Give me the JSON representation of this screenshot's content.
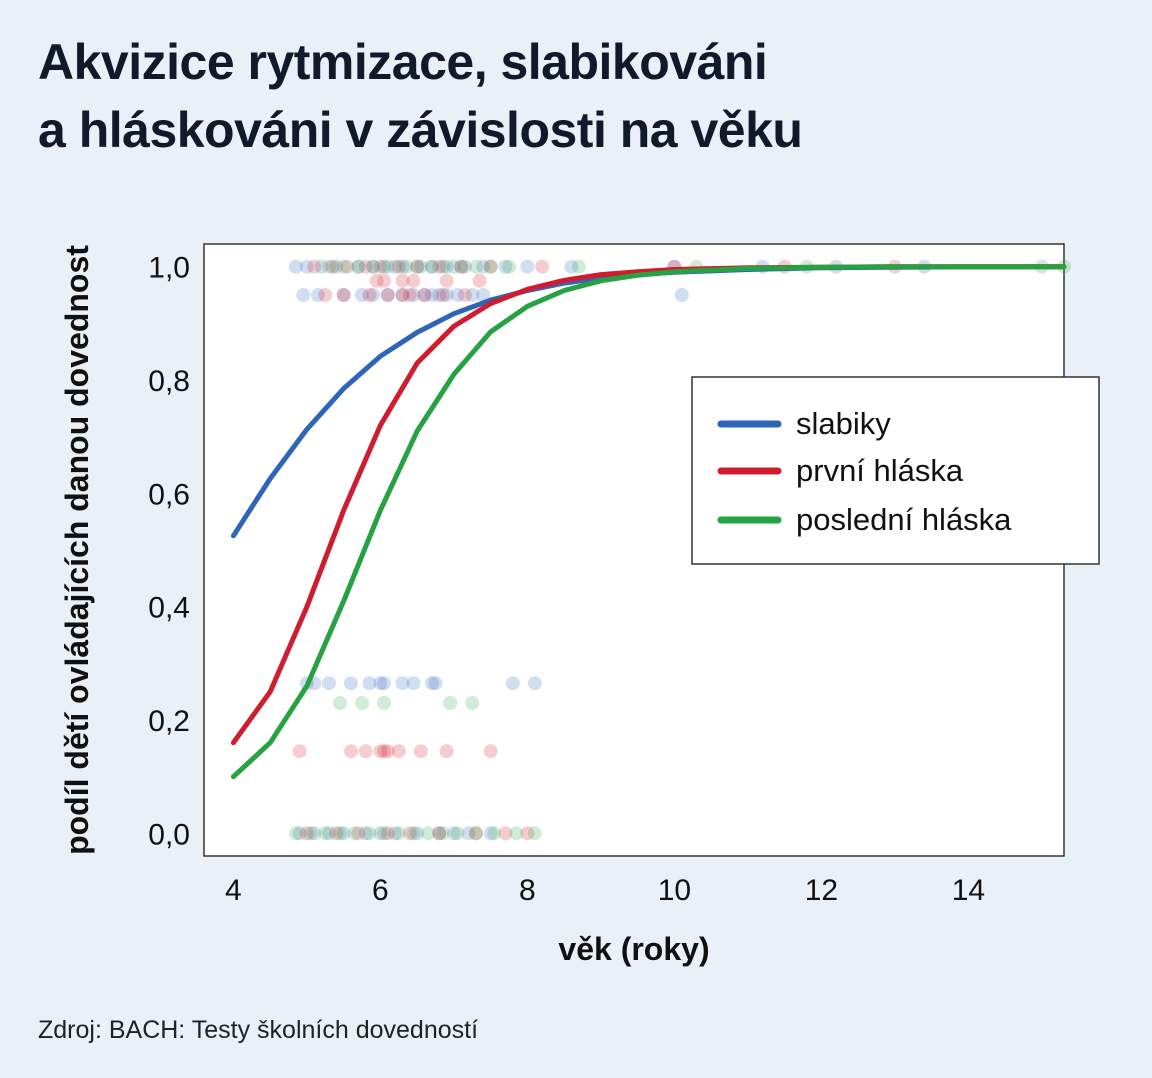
{
  "header": {
    "title_line1": "Akvizice rytmizace, slabikováni",
    "title_line2": "a hláskováni v závislosti na věku"
  },
  "footer": {
    "source": "Zdroj: BACH: Testy školních dovedností"
  },
  "chart_data": {
    "type": "line",
    "title": "Akvizice rytmizace, slabikováni a hláskováni v závislosti na věku",
    "xlabel": "věk (roky)",
    "ylabel": "podíl dětí ovládajících danou dovednost",
    "xlim": [
      3.6,
      15.3
    ],
    "ylim": [
      -0.04,
      1.04
    ],
    "x_ticks": [
      4,
      6,
      8,
      10,
      12,
      14
    ],
    "x_tick_labels": [
      "4",
      "6",
      "8",
      "10",
      "12",
      "14"
    ],
    "y_ticks": [
      0.0,
      0.2,
      0.4,
      0.6,
      0.8,
      1.0
    ],
    "y_tick_labels": [
      "0,0",
      "0,2",
      "0,4",
      "0,6",
      "0,8",
      "1,0"
    ],
    "grid": false,
    "legend_position": "right-middle",
    "series": [
      {
        "name": "slabiky",
        "color": "#2e65b9",
        "x": [
          4.0,
          4.5,
          5.0,
          5.5,
          6.0,
          6.5,
          7.0,
          7.5,
          8.0,
          8.5,
          9.0,
          9.5,
          10.0,
          11.0,
          12.0,
          13.0,
          14.0,
          15.3
        ],
        "y": [
          0.525,
          0.626,
          0.713,
          0.785,
          0.842,
          0.884,
          0.917,
          0.941,
          0.958,
          0.971,
          0.98,
          0.986,
          0.99,
          0.995,
          0.998,
          0.999,
          1.0,
          1.0
        ]
      },
      {
        "name": "první hláska",
        "color": "#d01c2f",
        "x": [
          4.0,
          4.5,
          5.0,
          5.5,
          6.0,
          6.5,
          7.0,
          7.5,
          8.0,
          8.5,
          9.0,
          9.5,
          10.0,
          11.0,
          12.0,
          13.0,
          14.0,
          15.3
        ],
        "y": [
          0.16,
          0.25,
          0.4,
          0.57,
          0.72,
          0.83,
          0.895,
          0.935,
          0.96,
          0.976,
          0.986,
          0.991,
          0.995,
          0.998,
          0.999,
          1.0,
          1.0,
          1.0
        ]
      },
      {
        "name": "poslední hláska",
        "color": "#27a243",
        "x": [
          4.0,
          4.5,
          5.0,
          5.5,
          6.0,
          6.5,
          7.0,
          7.5,
          8.0,
          8.5,
          9.0,
          9.5,
          10.0,
          11.0,
          12.0,
          13.0,
          14.0,
          15.3
        ],
        "y": [
          0.1,
          0.16,
          0.26,
          0.41,
          0.57,
          0.71,
          0.81,
          0.885,
          0.93,
          0.958,
          0.975,
          0.985,
          0.991,
          0.997,
          0.999,
          1.0,
          1.0,
          1.0
        ]
      }
    ],
    "points": [
      {
        "series": "slabiky",
        "x": [
          4.85,
          5.0,
          5.2,
          5.4,
          5.7,
          5.9,
          6.05,
          6.2,
          6.35,
          6.55,
          6.7,
          6.85,
          7.0,
          7.15,
          7.4,
          7.7,
          8.0,
          8.6,
          10.0,
          11.2,
          12.2,
          13.4
        ],
        "y": [
          1.0,
          1.0,
          1.0,
          1.0,
          1.0,
          1.0,
          1.0,
          1.0,
          1.0,
          1.0,
          1.0,
          1.0,
          1.0,
          1.0,
          1.0,
          1.0,
          1.0,
          1.0,
          1.0,
          1.0,
          1.0,
          1.0
        ]
      },
      {
        "series": "slabiky",
        "x": [
          4.95,
          5.15,
          5.5,
          5.75,
          5.9,
          6.1,
          6.3,
          6.45,
          6.6,
          6.7,
          6.8,
          6.9,
          7.05,
          7.25,
          7.4,
          10.1
        ],
        "y": [
          0.95,
          0.95,
          0.95,
          0.95,
          0.95,
          0.95,
          0.95,
          0.95,
          0.95,
          0.95,
          0.95,
          0.95,
          0.95,
          0.95,
          0.95,
          0.95
        ]
      },
      {
        "series": "slabiky",
        "x": [
          5.0,
          5.1,
          5.3,
          5.6,
          5.85,
          6.0,
          6.05,
          6.3,
          6.45,
          6.7,
          6.75,
          7.8,
          8.1
        ],
        "y": [
          0.265,
          0.265,
          0.265,
          0.265,
          0.265,
          0.265,
          0.265,
          0.265,
          0.265,
          0.265,
          0.265,
          0.265,
          0.265
        ]
      },
      {
        "series": "slabiky",
        "x": [
          4.9,
          5.1,
          5.3,
          5.5,
          5.8,
          6.0,
          6.2,
          6.5,
          6.8,
          7.0,
          7.2,
          7.5
        ],
        "y": [
          0.0,
          0.0,
          0.0,
          0.0,
          0.0,
          0.0,
          0.0,
          0.0,
          0.0,
          0.0,
          0.0,
          0.0
        ]
      },
      {
        "series": "první hláska",
        "x": [
          5.1,
          5.35,
          5.55,
          5.8,
          6.0,
          6.25,
          6.5,
          6.8,
          7.1,
          7.5,
          8.2,
          10.0,
          11.5,
          13.0
        ],
        "y": [
          1.0,
          1.0,
          1.0,
          1.0,
          1.0,
          1.0,
          1.0,
          1.0,
          1.0,
          1.0,
          1.0,
          1.0,
          1.0,
          1.0
        ]
      },
      {
        "series": "první hláska",
        "x": [
          5.95,
          6.05,
          6.3,
          6.45,
          6.9,
          7.35
        ],
        "y": [
          0.975,
          0.975,
          0.975,
          0.975,
          0.975,
          0.975
        ]
      },
      {
        "series": "první hláska",
        "x": [
          5.25,
          5.5,
          5.85,
          6.1,
          6.3,
          6.4,
          6.6,
          6.85,
          7.15
        ],
        "y": [
          0.95,
          0.95,
          0.95,
          0.95,
          0.95,
          0.95,
          0.95,
          0.95,
          0.95
        ]
      },
      {
        "series": "první hláska",
        "x": [
          4.9,
          5.6,
          5.8,
          6.0,
          6.05,
          6.1,
          6.25,
          6.55,
          6.9,
          7.5
        ],
        "y": [
          0.145,
          0.145,
          0.145,
          0.145,
          0.145,
          0.145,
          0.145,
          0.145,
          0.145,
          0.145
        ]
      },
      {
        "series": "první hláska",
        "x": [
          5.0,
          5.4,
          5.7,
          6.1,
          6.4,
          6.8,
          7.3,
          7.7,
          8.0
        ],
        "y": [
          0.0,
          0.0,
          0.0,
          0.0,
          0.0,
          0.0,
          0.0,
          0.0,
          0.0
        ]
      },
      {
        "series": "poslední hláska",
        "x": [
          5.3,
          5.5,
          5.7,
          5.9,
          6.1,
          6.3,
          6.5,
          6.7,
          6.9,
          7.1,
          7.3,
          7.5,
          7.75,
          8.7,
          10.3,
          11.8,
          15.0,
          15.3
        ],
        "y": [
          1.0,
          1.0,
          1.0,
          1.0,
          1.0,
          1.0,
          1.0,
          1.0,
          1.0,
          1.0,
          1.0,
          1.0,
          1.0,
          1.0,
          1.0,
          1.0,
          1.0,
          1.0
        ]
      },
      {
        "series": "poslední hláska",
        "x": [
          5.45,
          5.75,
          6.05,
          6.95,
          7.25
        ],
        "y": [
          0.23,
          0.23,
          0.23,
          0.23,
          0.23
        ]
      },
      {
        "series": "poslední hláska",
        "x": [
          4.85,
          5.05,
          5.25,
          5.45,
          5.65,
          5.85,
          6.05,
          6.25,
          6.45,
          6.65,
          6.85,
          7.05,
          7.3,
          7.55,
          7.85,
          8.1
        ],
        "y": [
          0.0,
          0.0,
          0.0,
          0.0,
          0.0,
          0.0,
          0.0,
          0.0,
          0.0,
          0.0,
          0.0,
          0.0,
          0.0,
          0.0,
          0.0,
          0.0
        ]
      }
    ]
  }
}
